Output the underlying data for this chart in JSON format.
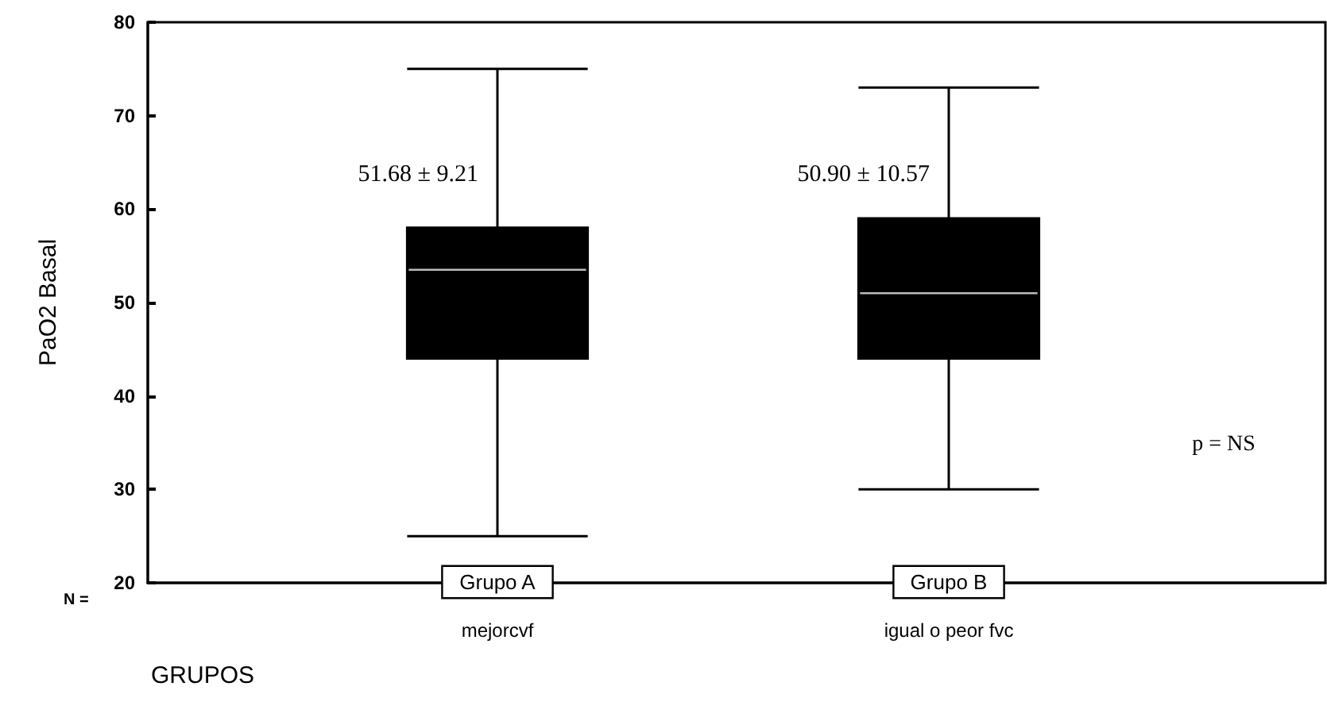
{
  "chart_data": {
    "type": "box",
    "xlabel": "GRUPOS",
    "ylabel": "PaO2 Basal",
    "categories": [
      "Grupo A",
      "Grupo B"
    ],
    "color": "#000000",
    "boxes": [
      {
        "low": 25,
        "q1": 44,
        "median": 53.5,
        "q3": 58,
        "high": 75
      },
      {
        "low": 30,
        "q1": 44,
        "median": 51,
        "q3": 59,
        "high": 73
      }
    ],
    "ylim": [
      20,
      80
    ],
    "yticks": [
      20,
      30,
      40,
      50,
      60,
      70,
      80
    ],
    "grid": false,
    "annotations": [
      "51.68 ± 9.21",
      "50.90 ± 10.57",
      "mejorcvf",
      "igual o peor fvc",
      "p = NS",
      "N ="
    ]
  }
}
